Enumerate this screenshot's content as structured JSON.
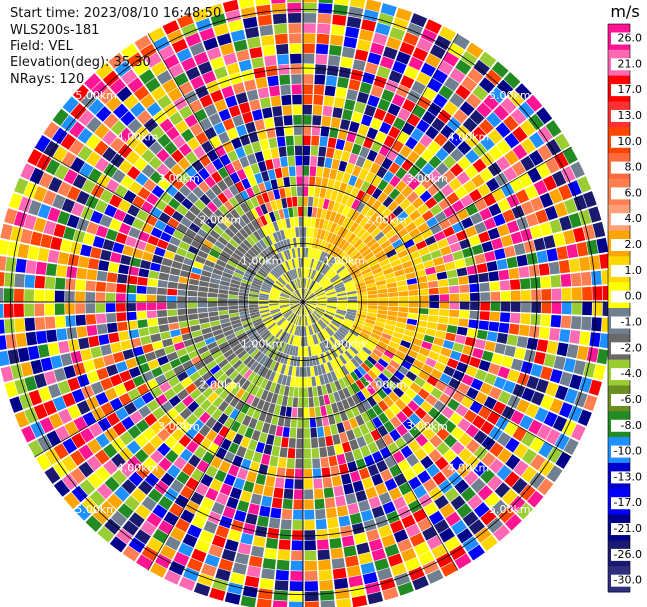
{
  "header": {
    "start_time": "Start time: 2023/08/10 16:48:50",
    "instrument": "WLS200s-181",
    "field": "Field: VEL",
    "elevation": "Elevation(deg): 35.30",
    "nrays": "NRays: 120"
  },
  "chart_data": {
    "type": "heatmap",
    "projection": "polar",
    "field": "VEL",
    "elevation_deg": 35.3,
    "n_rays": 120,
    "range_rings_km": [
      1.0,
      2.0,
      3.0,
      4.0,
      5.0
    ],
    "range_ring_labels": [
      "1.00km",
      "2.00km",
      "3.00km",
      "4.00km",
      "5.00km"
    ],
    "max_range_km": 5.3,
    "colorbar": {
      "unit": "m/s",
      "ticks": [
        "26.0",
        "21.0",
        "17.0",
        "13.0",
        "10.0",
        "8.0",
        "6.0",
        "4.0",
        "2.0",
        "1.0",
        "0.0",
        "-1.0",
        "-2.0",
        "-4.0",
        "-6.0",
        "-8.0",
        "-10.0",
        "-13.0",
        "-17.0",
        "-21.0",
        "-26.0",
        "-30.0"
      ],
      "colors": [
        "#ff1493",
        "#ff69b4",
        "#ff0000",
        "#ff3030",
        "#ff4500",
        "#ff6a3d",
        "#ff7f50",
        "#ffa07a",
        "#ffa500",
        "#ffd700",
        "#ffff00",
        "#708090",
        "#696969",
        "#9acd32",
        "#6b8e23",
        "#228b22",
        "#1e90ff",
        "#0000cd",
        "#0000ff",
        "#00008b",
        "#191970",
        "#2f2f7f"
      ]
    },
    "regions": [
      {
        "range_km": [
          0.0,
          1.5
        ],
        "azimuth_deg": [
          0,
          360
        ],
        "dominant_velocity_ms": 0.0
      },
      {
        "range_km": [
          0.8,
          2.5
        ],
        "azimuth_deg": [
          200,
          330
        ],
        "dominant_velocity_ms": -1.5
      },
      {
        "range_km": [
          1.0,
          2.8
        ],
        "azimuth_deg": [
          10,
          120
        ],
        "dominant_velocity_ms": 2.0
      },
      {
        "range_km": [
          1.5,
          3.2
        ],
        "azimuth_deg": [
          150,
          260
        ],
        "dominant_velocity_ms": -2.0
      },
      {
        "range_km": [
          3.0,
          5.3
        ],
        "azimuth_deg": [
          0,
          360
        ],
        "dominant_velocity_ms": "noise"
      }
    ]
  }
}
